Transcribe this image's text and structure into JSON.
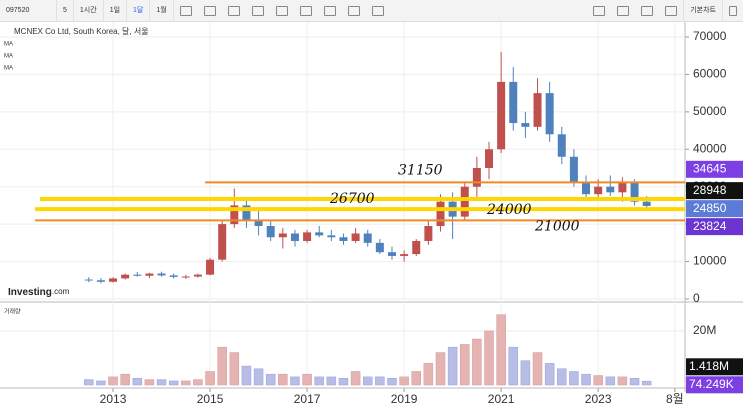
{
  "toolbar": {
    "symbol": "097520",
    "buttons": [
      "5",
      "1시간",
      "1일",
      "1달",
      "1월"
    ],
    "chart_style": "기본차트"
  },
  "chart_data": {
    "type": "candlestick",
    "title": "MCNEX Co Ltd, South Korea, 달, 서울",
    "indicators": [
      "MA",
      "MA",
      "MA"
    ],
    "logo": {
      "brand": "Investing",
      "suffix": ".com"
    },
    "x": [
      2012.5,
      2012.75,
      2013,
      2013.25,
      2013.5,
      2013.75,
      2014,
      2014.25,
      2014.5,
      2014.75,
      2015,
      2015.25,
      2015.5,
      2015.75,
      2016,
      2016.25,
      2016.5,
      2016.75,
      2017,
      2017.25,
      2017.5,
      2017.75,
      2018,
      2018.25,
      2018.5,
      2018.75,
      2019,
      2019.25,
      2019.5,
      2019.75,
      2020,
      2020.25,
      2020.5,
      2020.75,
      2021,
      2021.25,
      2021.5,
      2021.75,
      2022,
      2022.25,
      2022.5,
      2022.75,
      2023,
      2023.25,
      2023.5,
      2023.75,
      2024
    ],
    "open": [
      5200,
      5000,
      4600,
      5500,
      6500,
      6200,
      6800,
      6300,
      5900,
      6000,
      6500,
      10500,
      20000,
      25000,
      21000,
      19500,
      16500,
      17500,
      15500,
      17800,
      17000,
      16500,
      15500,
      17500,
      15000,
      12500,
      11500,
      12000,
      15500,
      19500,
      26000,
      22000,
      30000,
      35000,
      40000,
      58000,
      47000,
      46000,
      55000,
      44000,
      38000,
      31000,
      28000,
      30000,
      28500,
      31000,
      26000
    ],
    "high": [
      5800,
      5600,
      5800,
      6800,
      7200,
      7000,
      7300,
      6800,
      6400,
      6800,
      11000,
      21000,
      29500,
      27000,
      23500,
      21000,
      19000,
      18500,
      18500,
      19500,
      18500,
      17500,
      19000,
      18500,
      16000,
      14000,
      13000,
      16000,
      21000,
      28000,
      28500,
      31000,
      38000,
      42000,
      66000,
      62000,
      50000,
      59000,
      58000,
      46000,
      40000,
      33000,
      32000,
      33000,
      32500,
      32000,
      27500
    ],
    "low": [
      4500,
      4200,
      4400,
      5200,
      6000,
      5600,
      6000,
      5500,
      5400,
      5700,
      6300,
      10000,
      19000,
      19000,
      17000,
      15500,
      13500,
      14000,
      15000,
      16500,
      15500,
      14500,
      15000,
      14000,
      12000,
      10500,
      10000,
      11500,
      14500,
      18000,
      16000,
      21000,
      27000,
      32000,
      39000,
      45000,
      43000,
      45000,
      42000,
      36000,
      30000,
      27000,
      26500,
      27500,
      26000,
      25000,
      24000
    ],
    "close": [
      5000,
      4600,
      5500,
      6500,
      6200,
      6800,
      6300,
      5900,
      6000,
      6500,
      10500,
      20000,
      25000,
      21000,
      19500,
      16500,
      17500,
      15500,
      17800,
      17000,
      16500,
      15500,
      17500,
      15000,
      12500,
      11500,
      12000,
      15500,
      19500,
      26000,
      22000,
      30000,
      35000,
      40000,
      58000,
      47000,
      46000,
      55000,
      44000,
      38000,
      31000,
      28000,
      30000,
      28500,
      31000,
      26000,
      24850
    ],
    "volume": [
      2000000,
      1500000,
      3000000,
      4000000,
      2500000,
      2000000,
      2000000,
      1500000,
      1500000,
      2000000,
      5000000,
      14000000,
      12000000,
      7000000,
      6000000,
      4000000,
      4000000,
      3000000,
      4000000,
      3000000,
      3000000,
      2500000,
      5000000,
      3000000,
      3000000,
      2500000,
      3000000,
      5000000,
      8000000,
      12000000,
      14000000,
      15000000,
      17000000,
      20000000,
      26000000,
      14000000,
      9000000,
      12000000,
      8000000,
      6000000,
      5000000,
      4000000,
      3500000,
      3000000,
      3000000,
      2500000,
      1418000
    ],
    "up_color": "#c0504d",
    "down_color": "#4f81bd",
    "xlim": [
      2010.67,
      2024.79
    ],
    "xticks": [
      2013,
      2015,
      2017,
      2019,
      2021,
      2023,
      {
        "value": 2024.58,
        "label": "8월"
      }
    ],
    "ylim": [
      0,
      74000
    ],
    "yticks": [
      0,
      10000,
      20000,
      30000,
      40000,
      50000,
      60000,
      70000
    ],
    "grid": true,
    "volume_label": "거래량",
    "volume_ylim": [
      0,
      27000000
    ],
    "volume_yticks": [
      {
        "value": 20000000,
        "label": "20M"
      }
    ],
    "price_labels": [
      {
        "value": 34645,
        "color": "#7b3fe4"
      },
      {
        "value": 28948,
        "color": "#111111"
      },
      {
        "value": 24850,
        "color": "#5b7bd6"
      },
      {
        "value": 23824,
        "color": "#6a35d0"
      }
    ],
    "volume_labels": [
      {
        "value": 1418000,
        "label": "1.418M",
        "color": "#111111"
      },
      {
        "value": 74249,
        "label": "74.249K",
        "color": "#7b3fe4"
      }
    ],
    "annotations": [
      {
        "text": "31150",
        "value": 31150,
        "color": "#f08a24"
      },
      {
        "text": "26700",
        "value": 26700,
        "color": "#ffd700"
      },
      {
        "text": "24000",
        "value": 24000,
        "color": "#ffd700"
      },
      {
        "text": "21000",
        "value": 21000,
        "color": "#f08a24"
      }
    ]
  }
}
